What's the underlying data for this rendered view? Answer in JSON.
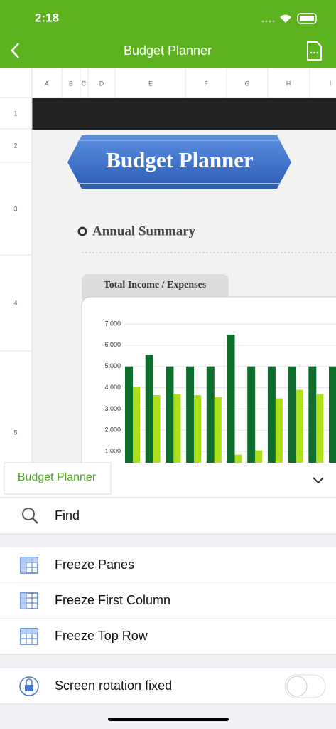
{
  "status_bar": {
    "time": "2:18"
  },
  "nav": {
    "title": "Budget Planner"
  },
  "sheet": {
    "columns": [
      "A",
      "B",
      "C",
      "D",
      "E",
      "F",
      "G",
      "H",
      "I"
    ],
    "rows": [
      "1",
      "2",
      "3",
      "4",
      "5"
    ],
    "banner": "Budget Planner",
    "section": "Annual Summary",
    "chart": {
      "title": "Total Income / Expenses",
      "ylim": [
        0,
        7000
      ],
      "yticks": [
        {
          "value": 1000,
          "label": "1,000"
        },
        {
          "value": 2000,
          "label": "2,000"
        },
        {
          "value": 3000,
          "label": "3,000"
        },
        {
          "value": 4000,
          "label": "4,000"
        },
        {
          "value": 5000,
          "label": "5,000"
        },
        {
          "value": 6000,
          "label": "6,000"
        },
        {
          "value": 7000,
          "label": "7,000"
        }
      ],
      "grid": true,
      "series": [
        {
          "color": "#0e6e2b",
          "values": [
            5000,
            5550,
            5000,
            5000,
            5000,
            6500,
            5000,
            5000,
            5000,
            5000,
            5000
          ]
        },
        {
          "color": "#aee019",
          "values": [
            4050,
            3650,
            3700,
            3650,
            3550,
            850,
            1050,
            3500,
            3900,
            3700,
            null
          ]
        }
      ]
    }
  },
  "sheet_tab": "Budget Planner",
  "menu": [
    "Find",
    "Freeze Panes",
    "Freeze First Column",
    "Freeze Top Row",
    "Screen rotation fixed"
  ]
}
